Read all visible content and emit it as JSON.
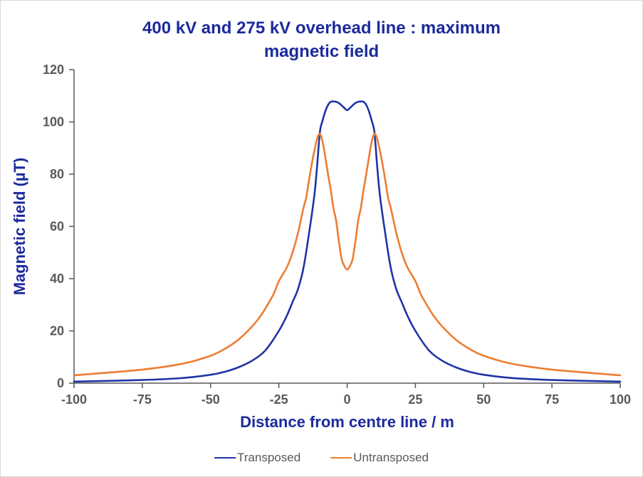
{
  "chart": {
    "title_line1": "400 kV and 275 kV overhead line : maximum",
    "title_line2": "magnetic field"
  },
  "chart_data": {
    "type": "line",
    "title": "400 kV and 275 kV overhead line : maximum magnetic field",
    "xlabel": "Distance from centre line / m",
    "ylabel": "Magnetic field (µT)",
    "xlim": [
      -100,
      100
    ],
    "ylim": [
      0,
      120
    ],
    "x_ticks": [
      -100,
      -75,
      -50,
      -25,
      0,
      25,
      50,
      75,
      100
    ],
    "y_ticks": [
      0,
      20,
      40,
      60,
      80,
      100,
      120
    ],
    "grid": false,
    "legend_position": "bottom",
    "axis_color": "#595959",
    "tick_label_color": "#595959",
    "title_color": "#1b2a9b",
    "series": [
      {
        "name": "Transposed",
        "color": "#1e34a6",
        "points": [
          [
            -100,
            0.6
          ],
          [
            -75,
            1.2
          ],
          [
            -60,
            2.0
          ],
          [
            -50,
            3.2
          ],
          [
            -45,
            4.3
          ],
          [
            -40,
            6.0
          ],
          [
            -35,
            8.5
          ],
          [
            -30,
            12.5
          ],
          [
            -25,
            20.0
          ],
          [
            -22,
            26.0
          ],
          [
            -20,
            31.0
          ],
          [
            -18,
            36.0
          ],
          [
            -16,
            44.0
          ],
          [
            -14,
            57.0
          ],
          [
            -12,
            72.0
          ],
          [
            -11,
            83.0
          ],
          [
            -10,
            96.0
          ],
          [
            -9,
            100.5
          ],
          [
            -8,
            104.0
          ],
          [
            -7,
            106.5
          ],
          [
            -6,
            107.7
          ],
          [
            -5,
            107.8
          ],
          [
            -4,
            107.7
          ],
          [
            -3,
            107.2
          ],
          [
            -2,
            106.3
          ],
          [
            -1,
            105.3
          ],
          [
            0,
            104.5
          ],
          [
            1,
            105.3
          ],
          [
            2,
            106.3
          ],
          [
            3,
            107.2
          ],
          [
            4,
            107.7
          ],
          [
            5,
            107.8
          ],
          [
            6,
            107.7
          ],
          [
            7,
            106.5
          ],
          [
            8,
            104.0
          ],
          [
            9,
            100.5
          ],
          [
            10,
            96.0
          ],
          [
            11,
            83.0
          ],
          [
            12,
            72.0
          ],
          [
            14,
            57.0
          ],
          [
            16,
            44.0
          ],
          [
            18,
            36.0
          ],
          [
            20,
            31.0
          ],
          [
            22,
            26.0
          ],
          [
            25,
            20.0
          ],
          [
            30,
            12.5
          ],
          [
            35,
            8.5
          ],
          [
            40,
            6.0
          ],
          [
            45,
            4.3
          ],
          [
            50,
            3.2
          ],
          [
            60,
            2.0
          ],
          [
            75,
            1.2
          ],
          [
            100,
            0.6
          ]
        ]
      },
      {
        "name": "Untransposed",
        "color": "#ed7d31",
        "points": [
          [
            -100,
            3.0
          ],
          [
            -75,
            5.2
          ],
          [
            -60,
            7.5
          ],
          [
            -50,
            10.5
          ],
          [
            -45,
            13.0
          ],
          [
            -40,
            16.5
          ],
          [
            -35,
            21.5
          ],
          [
            -32,
            25.3
          ],
          [
            -30,
            28.5
          ],
          [
            -27,
            34.0
          ],
          [
            -25,
            39.0
          ],
          [
            -22,
            44.5
          ],
          [
            -20,
            50.0
          ],
          [
            -18,
            57.5
          ],
          [
            -16,
            67.0
          ],
          [
            -15,
            71.0
          ],
          [
            -14,
            77.5
          ],
          [
            -13,
            83.5
          ],
          [
            -12,
            89.0
          ],
          [
            -11,
            93.5
          ],
          [
            -10,
            95.5
          ],
          [
            -9,
            92.5
          ],
          [
            -8,
            86.5
          ],
          [
            -7,
            80.0
          ],
          [
            -6,
            74.0
          ],
          [
            -5,
            67.0
          ],
          [
            -4,
            62.0
          ],
          [
            -3,
            54.0
          ],
          [
            -2,
            47.5
          ],
          [
            -1,
            44.8
          ],
          [
            0,
            43.5
          ],
          [
            1,
            44.8
          ],
          [
            2,
            47.5
          ],
          [
            3,
            54.0
          ],
          [
            4,
            62.0
          ],
          [
            5,
            67.0
          ],
          [
            6,
            74.0
          ],
          [
            7,
            80.0
          ],
          [
            8,
            86.5
          ],
          [
            9,
            92.5
          ],
          [
            10,
            95.5
          ],
          [
            11,
            93.5
          ],
          [
            12,
            89.0
          ],
          [
            13,
            83.5
          ],
          [
            14,
            77.5
          ],
          [
            15,
            71.0
          ],
          [
            16,
            67.0
          ],
          [
            18,
            57.5
          ],
          [
            20,
            50.0
          ],
          [
            22,
            44.5
          ],
          [
            25,
            39.0
          ],
          [
            27,
            34.0
          ],
          [
            30,
            28.5
          ],
          [
            32,
            25.3
          ],
          [
            35,
            21.5
          ],
          [
            40,
            16.5
          ],
          [
            45,
            13.0
          ],
          [
            50,
            10.5
          ],
          [
            60,
            7.5
          ],
          [
            75,
            5.2
          ],
          [
            100,
            3.0
          ]
        ]
      }
    ]
  }
}
